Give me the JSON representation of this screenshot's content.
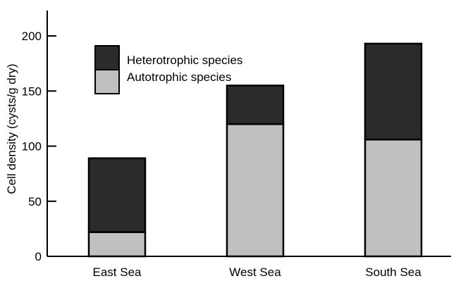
{
  "chart_data": {
    "type": "bar",
    "stacked": true,
    "categories": [
      "East Sea",
      "West Sea",
      "South Sea"
    ],
    "series": [
      {
        "name": "Autotrophic species",
        "values": [
          22,
          120,
          106
        ],
        "color": "#c0c0c0"
      },
      {
        "name": "Heterotrophic species",
        "values": [
          67,
          35,
          87
        ],
        "color": "#2b2b2b"
      }
    ],
    "xlabel": "",
    "ylabel": "Cell density (cysts/g dry)",
    "ylim": [
      0,
      225
    ],
    "yticks": [
      0,
      50,
      100,
      150,
      200
    ],
    "legend_order": [
      "Heterotrophic species",
      "Autotrophic species"
    ],
    "legend_position": "top-left",
    "grid": false
  }
}
